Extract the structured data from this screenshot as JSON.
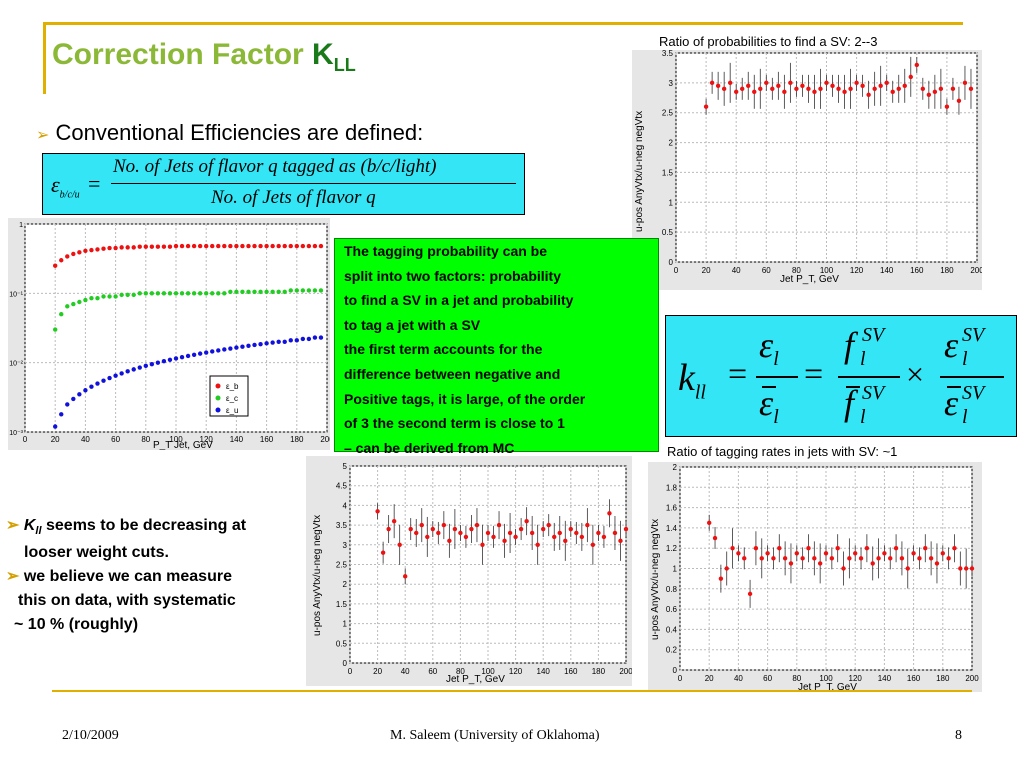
{
  "slide": {
    "title_main": "Correction Factor ",
    "title_k": "K",
    "title_sub": "LL",
    "bullet_symbol": "➢",
    "conventional": "Conventional Efficiencies are defined:",
    "formula": {
      "lhs": "ε",
      "lhs_sub": "b/c/u",
      "eq": "=",
      "numerator": "No. of Jets of flavor q tagged as (b/c/light)",
      "denominator": "No. of Jets of flavor q"
    },
    "green_box_lines": [
      "The tagging probability can be",
      "split into two factors: probability",
      "to find a SV in a jet and probability",
      "to tag a jet with a SV",
      "the first term accounts for the",
      "difference between negative and",
      "Positive tags, it is large, of the order",
      "of 3 the second term is close to 1",
      "– can be derived from MC"
    ],
    "kll_formula": {
      "k": "k",
      "k_sub": "ll",
      "eq": "=",
      "eps": "ε",
      "l": "l",
      "f": "f",
      "sv": "SV",
      "times": "×"
    },
    "caption_top": "Ratio of probabilities to find a SV: 2--3",
    "caption_mid": "Ratio of tagging rates in jets with SV: ~1",
    "kll_label": "K",
    "kll_label_sub": "LL",
    "left_points": [
      {
        "marker": "➢",
        "k": "K",
        "k_sub": "ll",
        "text": " seems to be decreasing at"
      },
      {
        "marker": "",
        "text": "looser weight cuts."
      },
      {
        "marker": "➢",
        "text": "we believe we can  measure"
      },
      {
        "marker": "",
        "text": "this  on data, with systematic"
      },
      {
        "marker": "",
        "text": "~  10 %  (roughly)"
      }
    ],
    "footer": {
      "date": "2/10/2009",
      "author": "M. Saleem (University of Oklahoma)",
      "page": "8"
    }
  },
  "chart_data": [
    {
      "type": "scatter",
      "ylabel": "u-pos AnyVtx/u-neg negVtx",
      "xlabel": "Jet P_T, GeV",
      "xlim": [
        0,
        200
      ],
      "ylim": [
        0,
        3.5
      ],
      "xticks": [
        "0",
        "20",
        "40",
        "60",
        "80",
        "100",
        "120",
        "140",
        "160",
        "180",
        "200"
      ],
      "yticks": [
        "0",
        "0.5",
        "1",
        "1.5",
        "2",
        "2.5",
        "3",
        "3.5"
      ],
      "grid": true,
      "series": [
        {
          "color": "#ee1111",
          "x": [
            20,
            24,
            28,
            32,
            36,
            40,
            44,
            48,
            52,
            56,
            60,
            64,
            68,
            72,
            76,
            80,
            84,
            88,
            92,
            96,
            100,
            104,
            108,
            112,
            116,
            120,
            124,
            128,
            132,
            136,
            140,
            144,
            148,
            152,
            156,
            160,
            164,
            168,
            172,
            176,
            180,
            184,
            188,
            192,
            196
          ],
          "y": [
            2.6,
            3.0,
            2.95,
            2.9,
            3.0,
            2.85,
            2.9,
            2.95,
            2.85,
            2.9,
            3.0,
            2.9,
            2.95,
            2.85,
            3.0,
            2.9,
            2.95,
            2.9,
            2.85,
            2.9,
            3.0,
            2.95,
            2.9,
            2.85,
            2.9,
            3.0,
            2.95,
            2.8,
            2.9,
            2.95,
            3.0,
            2.85,
            2.9,
            2.95,
            3.1,
            3.3,
            2.9,
            2.8,
            2.85,
            2.9,
            2.6,
            2.9,
            2.7,
            3.0,
            2.9
          ]
        }
      ]
    },
    {
      "type": "scatter",
      "ylabel": "",
      "xlabel": "P_T  Jet, GeV",
      "xlim": [
        0,
        200
      ],
      "log_y": true,
      "ylim": [
        0.001,
        1
      ],
      "xticks": [
        "0",
        "20",
        "40",
        "60",
        "80",
        "100",
        "120",
        "140",
        "160",
        "180",
        "200"
      ],
      "yticks": [
        "10⁻³",
        "10⁻²",
        "10⁻¹",
        "1"
      ],
      "legend": [
        "ε_b",
        "ε_c",
        "ε_u"
      ],
      "legend_position": "bottom-right",
      "grid": true,
      "series": [
        {
          "name": "ε_b",
          "color": "#ee1111",
          "x": [
            20,
            24,
            28,
            32,
            36,
            40,
            44,
            48,
            52,
            56,
            60,
            64,
            68,
            72,
            76,
            80,
            84,
            88,
            92,
            96,
            100,
            104,
            108,
            112,
            116,
            120,
            124,
            128,
            132,
            136,
            140,
            144,
            148,
            152,
            156,
            160,
            164,
            168,
            172,
            176,
            180,
            184,
            188,
            192,
            196
          ],
          "y": [
            0.25,
            0.3,
            0.34,
            0.37,
            0.39,
            0.41,
            0.42,
            0.43,
            0.44,
            0.45,
            0.45,
            0.46,
            0.46,
            0.46,
            0.47,
            0.47,
            0.47,
            0.47,
            0.47,
            0.47,
            0.48,
            0.48,
            0.48,
            0.48,
            0.48,
            0.48,
            0.48,
            0.48,
            0.48,
            0.48,
            0.48,
            0.48,
            0.48,
            0.48,
            0.48,
            0.48,
            0.48,
            0.48,
            0.48,
            0.48,
            0.48,
            0.48,
            0.48,
            0.48,
            0.48
          ]
        },
        {
          "name": "ε_c",
          "color": "#22cc22",
          "x": [
            20,
            24,
            28,
            32,
            36,
            40,
            44,
            48,
            52,
            56,
            60,
            64,
            68,
            72,
            76,
            80,
            84,
            88,
            92,
            96,
            100,
            104,
            108,
            112,
            116,
            120,
            124,
            128,
            132,
            136,
            140,
            144,
            148,
            152,
            156,
            160,
            164,
            168,
            172,
            176,
            180,
            184,
            188,
            192,
            196
          ],
          "y": [
            0.03,
            0.05,
            0.065,
            0.07,
            0.075,
            0.08,
            0.085,
            0.085,
            0.09,
            0.09,
            0.09,
            0.095,
            0.095,
            0.095,
            0.1,
            0.1,
            0.1,
            0.1,
            0.1,
            0.1,
            0.1,
            0.1,
            0.1,
            0.1,
            0.1,
            0.1,
            0.1,
            0.1,
            0.1,
            0.105,
            0.105,
            0.105,
            0.105,
            0.105,
            0.105,
            0.105,
            0.105,
            0.105,
            0.105,
            0.11,
            0.11,
            0.11,
            0.11,
            0.11,
            0.11
          ]
        },
        {
          "name": "ε_u",
          "color": "#1111dd",
          "x": [
            20,
            24,
            28,
            32,
            36,
            40,
            44,
            48,
            52,
            56,
            60,
            64,
            68,
            72,
            76,
            80,
            84,
            88,
            92,
            96,
            100,
            104,
            108,
            112,
            116,
            120,
            124,
            128,
            132,
            136,
            140,
            144,
            148,
            152,
            156,
            160,
            164,
            168,
            172,
            176,
            180,
            184,
            188,
            192,
            196
          ],
          "y": [
            0.0012,
            0.0018,
            0.0025,
            0.003,
            0.0035,
            0.004,
            0.0045,
            0.005,
            0.0055,
            0.006,
            0.0065,
            0.007,
            0.0075,
            0.008,
            0.0085,
            0.009,
            0.0095,
            0.01,
            0.0105,
            0.011,
            0.0115,
            0.012,
            0.0125,
            0.013,
            0.0135,
            0.014,
            0.0145,
            0.015,
            0.0155,
            0.016,
            0.0165,
            0.017,
            0.0175,
            0.018,
            0.0185,
            0.019,
            0.0195,
            0.02,
            0.02,
            0.021,
            0.021,
            0.022,
            0.022,
            0.023,
            0.023
          ]
        }
      ]
    },
    {
      "type": "scatter",
      "ylabel": "u-pos AnyVtx/u-neg negVtx",
      "xlabel": "Jet P_T, GeV",
      "xlim": [
        0,
        200
      ],
      "ylim": [
        0,
        5
      ],
      "xticks": [
        "0",
        "20",
        "40",
        "60",
        "80",
        "100",
        "120",
        "140",
        "160",
        "180",
        "200"
      ],
      "yticks": [
        "0",
        "0.5",
        "1",
        "1.5",
        "2",
        "2.5",
        "3",
        "3.5",
        "4",
        "4.5",
        "5"
      ],
      "grid": true,
      "series": [
        {
          "color": "#ee1111",
          "x": [
            20,
            24,
            28,
            32,
            36,
            40,
            44,
            48,
            52,
            56,
            60,
            64,
            68,
            72,
            76,
            80,
            84,
            88,
            92,
            96,
            100,
            104,
            108,
            112,
            116,
            120,
            124,
            128,
            132,
            136,
            140,
            144,
            148,
            152,
            156,
            160,
            164,
            168,
            172,
            176,
            180,
            184,
            188,
            192,
            196,
            200
          ],
          "y": [
            3.85,
            2.8,
            3.4,
            3.6,
            3.0,
            2.2,
            3.4,
            3.3,
            3.5,
            3.2,
            3.4,
            3.3,
            3.5,
            3.1,
            3.4,
            3.3,
            3.2,
            3.4,
            3.5,
            3.0,
            3.3,
            3.2,
            3.5,
            3.1,
            3.3,
            3.2,
            3.4,
            3.6,
            3.3,
            3.0,
            3.4,
            3.5,
            3.2,
            3.3,
            3.1,
            3.4,
            3.3,
            3.2,
            3.5,
            3.0,
            3.3,
            3.2,
            3.8,
            3.3,
            3.1,
            3.4
          ]
        }
      ]
    },
    {
      "type": "scatter",
      "ylabel": "u-pos AnyVtx/u-neg negVtx",
      "xlabel": "Jet P_T, GeV",
      "xlim": [
        0,
        200
      ],
      "ylim": [
        0,
        2
      ],
      "xticks": [
        "0",
        "20",
        "40",
        "60",
        "80",
        "100",
        "120",
        "140",
        "160",
        "180",
        "200"
      ],
      "yticks": [
        "0",
        "0.2",
        "0.4",
        "0.6",
        "0.8",
        "1",
        "1.2",
        "1.4",
        "1.6",
        "1.8",
        "2"
      ],
      "grid": true,
      "series": [
        {
          "color": "#ee1111",
          "x": [
            20,
            24,
            28,
            32,
            36,
            40,
            44,
            48,
            52,
            56,
            60,
            64,
            68,
            72,
            76,
            80,
            84,
            88,
            92,
            96,
            100,
            104,
            108,
            112,
            116,
            120,
            124,
            128,
            132,
            136,
            140,
            144,
            148,
            152,
            156,
            160,
            164,
            168,
            172,
            176,
            180,
            184,
            188,
            192,
            196,
            200
          ],
          "y": [
            1.45,
            1.3,
            0.9,
            1.0,
            1.2,
            1.15,
            1.1,
            0.75,
            1.2,
            1.1,
            1.15,
            1.1,
            1.2,
            1.1,
            1.05,
            1.15,
            1.1,
            1.2,
            1.1,
            1.05,
            1.15,
            1.1,
            1.2,
            1.0,
            1.1,
            1.15,
            1.1,
            1.2,
            1.05,
            1.1,
            1.15,
            1.1,
            1.2,
            1.1,
            1.0,
            1.15,
            1.1,
            1.2,
            1.1,
            1.05,
            1.15,
            1.1,
            1.2,
            1.0,
            1.0,
            1.0
          ]
        }
      ]
    }
  ]
}
